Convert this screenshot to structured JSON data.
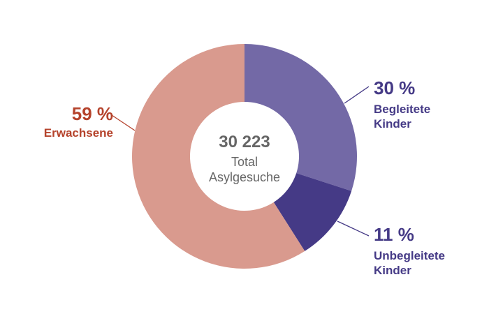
{
  "chart_data": {
    "type": "pie",
    "donut": true,
    "categories": [
      "Begleitete Kinder",
      "Unbegleitete Kinder",
      "Erwachsene"
    ],
    "values": [
      30,
      11,
      59
    ],
    "value_labels": [
      "30 %",
      "11 %",
      "59 %"
    ],
    "colors": [
      "#7369a6",
      "#453a86",
      "#d99a8e"
    ],
    "label_colors": [
      "#453a86",
      "#453a86",
      "#b5432c"
    ],
    "center": {
      "total": "30 223",
      "label_line1": "Total",
      "label_line2": "Asylgesuche"
    },
    "title": ""
  },
  "labels": {
    "begleitete": {
      "pct": "30 %",
      "line1": "Begleitete",
      "line2": "Kinder"
    },
    "unbegleitete": {
      "pct": "11 %",
      "line1": "Unbegleitete",
      "line2": "Kinder"
    },
    "erwachsene": {
      "pct": "59 %",
      "line1": "Erwachsene"
    }
  }
}
